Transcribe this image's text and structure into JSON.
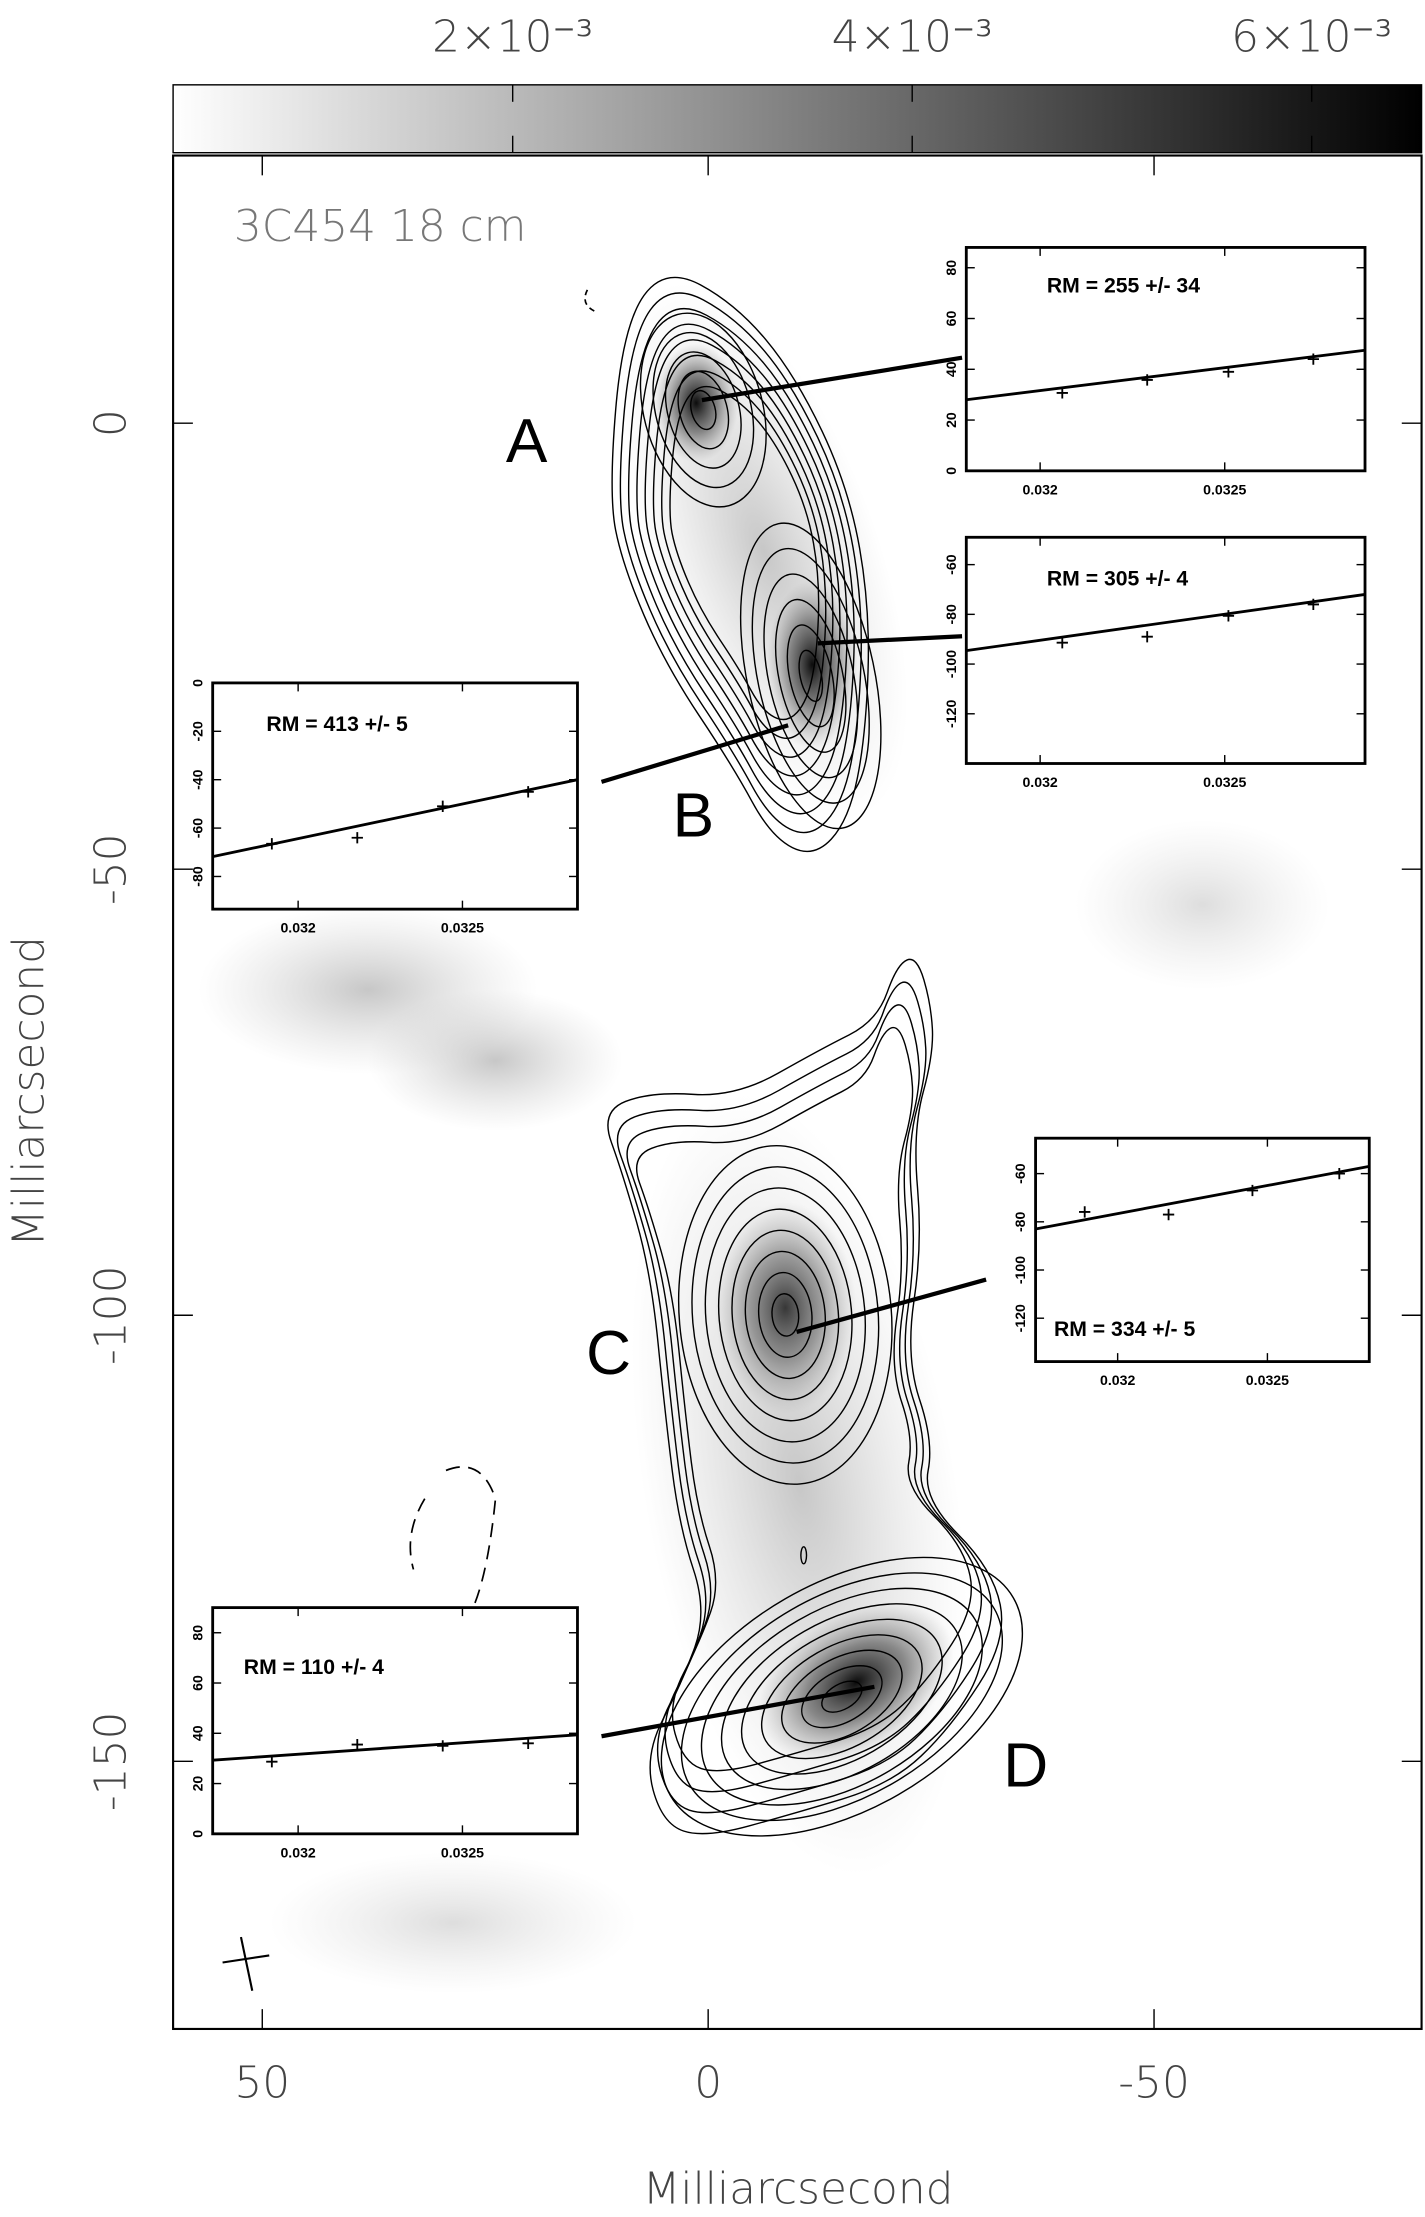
{
  "chart_data": [
    {
      "type": "image",
      "title": "3C454 18 cm",
      "xlabel": "Milliarcsecond",
      "ylabel": "Milliarcsecond",
      "xlim": [
        60,
        -80
      ],
      "ylim": [
        -180,
        30
      ],
      "xticks": [
        50,
        0,
        -50
      ],
      "yticks": [
        0,
        -50,
        -100,
        -150
      ],
      "colorbar": {
        "lim": [
          0.0003,
          0.00655
        ],
        "ticks": [
          {
            "value": 0.002,
            "label": "2×10⁻³"
          },
          {
            "value": 0.004,
            "label": "4×10⁻³"
          },
          {
            "value": 0.006,
            "label": "6×10⁻³"
          }
        ]
      },
      "annotations": [
        "A",
        "B",
        "C",
        "D"
      ]
    },
    {
      "type": "scatter",
      "title": "RM = 255 +/- 34",
      "x": [
        0.03206,
        0.03229,
        0.03251,
        0.03274
      ],
      "values": [
        30.7,
        35.8,
        39,
        44
      ],
      "fit": {
        "x": [
          0.0318,
          0.03288
        ],
        "values": [
          28,
          47.5
        ]
      },
      "xlim": [
        0.0318,
        0.03288
      ],
      "ylim": [
        0,
        88
      ],
      "xticks": [
        0.032,
        0.0325
      ],
      "yticks": [
        0,
        20,
        40,
        60,
        80
      ]
    },
    {
      "type": "scatter",
      "title": "RM = 305 +/- 4",
      "x": [
        0.03206,
        0.03229,
        0.03251,
        0.03274
      ],
      "values": [
        -91.4,
        -89,
        -80.6,
        -76
      ],
      "fit": {
        "x": [
          0.0318,
          0.03288
        ],
        "values": [
          -94.6,
          -72
        ]
      },
      "xlim": [
        0.0318,
        0.03288
      ],
      "ylim": [
        -140,
        -49
      ],
      "xticks": [
        0.032,
        0.0325
      ],
      "yticks": [
        -120,
        -100,
        -80,
        -60
      ]
    },
    {
      "type": "scatter",
      "title": "RM = 413 +/- 5",
      "x": [
        0.03192,
        0.03218,
        0.03244,
        0.0327
      ],
      "values": [
        -66.5,
        -64,
        -51,
        -45
      ],
      "fit": {
        "x": [
          0.03174,
          0.03285
        ],
        "values": [
          -71.8,
          -40
        ]
      },
      "xlim": [
        0.03174,
        0.03285
      ],
      "ylim": [
        -93.5,
        0
      ],
      "xticks": [
        0.032,
        0.0325
      ],
      "yticks": [
        -80,
        -60,
        -40,
        -20,
        0
      ]
    },
    {
      "type": "scatter",
      "title": "RM = 334 +/- 5",
      "x": [
        0.03189,
        0.03217,
        0.03245,
        0.03274
      ],
      "values": [
        -75.9,
        -77,
        -67,
        -60
      ],
      "fit": {
        "x": [
          0.031726,
          0.03284
        ],
        "values": [
          -83,
          -57
        ]
      },
      "xlim": [
        0.031726,
        0.03284
      ],
      "ylim": [
        -138,
        -45.3
      ],
      "xticks": [
        0.032,
        0.0325
      ],
      "yticks": [
        -120,
        -100,
        -80,
        -60
      ]
    },
    {
      "type": "scatter",
      "title": "RM = 110 +/- 4",
      "x": [
        0.03192,
        0.03218,
        0.03244,
        0.0327
      ],
      "values": [
        28.7,
        35.5,
        35,
        36
      ],
      "fit": {
        "x": [
          0.03174,
          0.03285
        ],
        "values": [
          29.3,
          39.4
        ]
      },
      "xlim": [
        0.03174,
        0.03285
      ],
      "ylim": [
        0,
        90
      ],
      "xticks": [
        0.032,
        0.0325
      ],
      "yticks": [
        0,
        20,
        40,
        60,
        80
      ]
    }
  ]
}
